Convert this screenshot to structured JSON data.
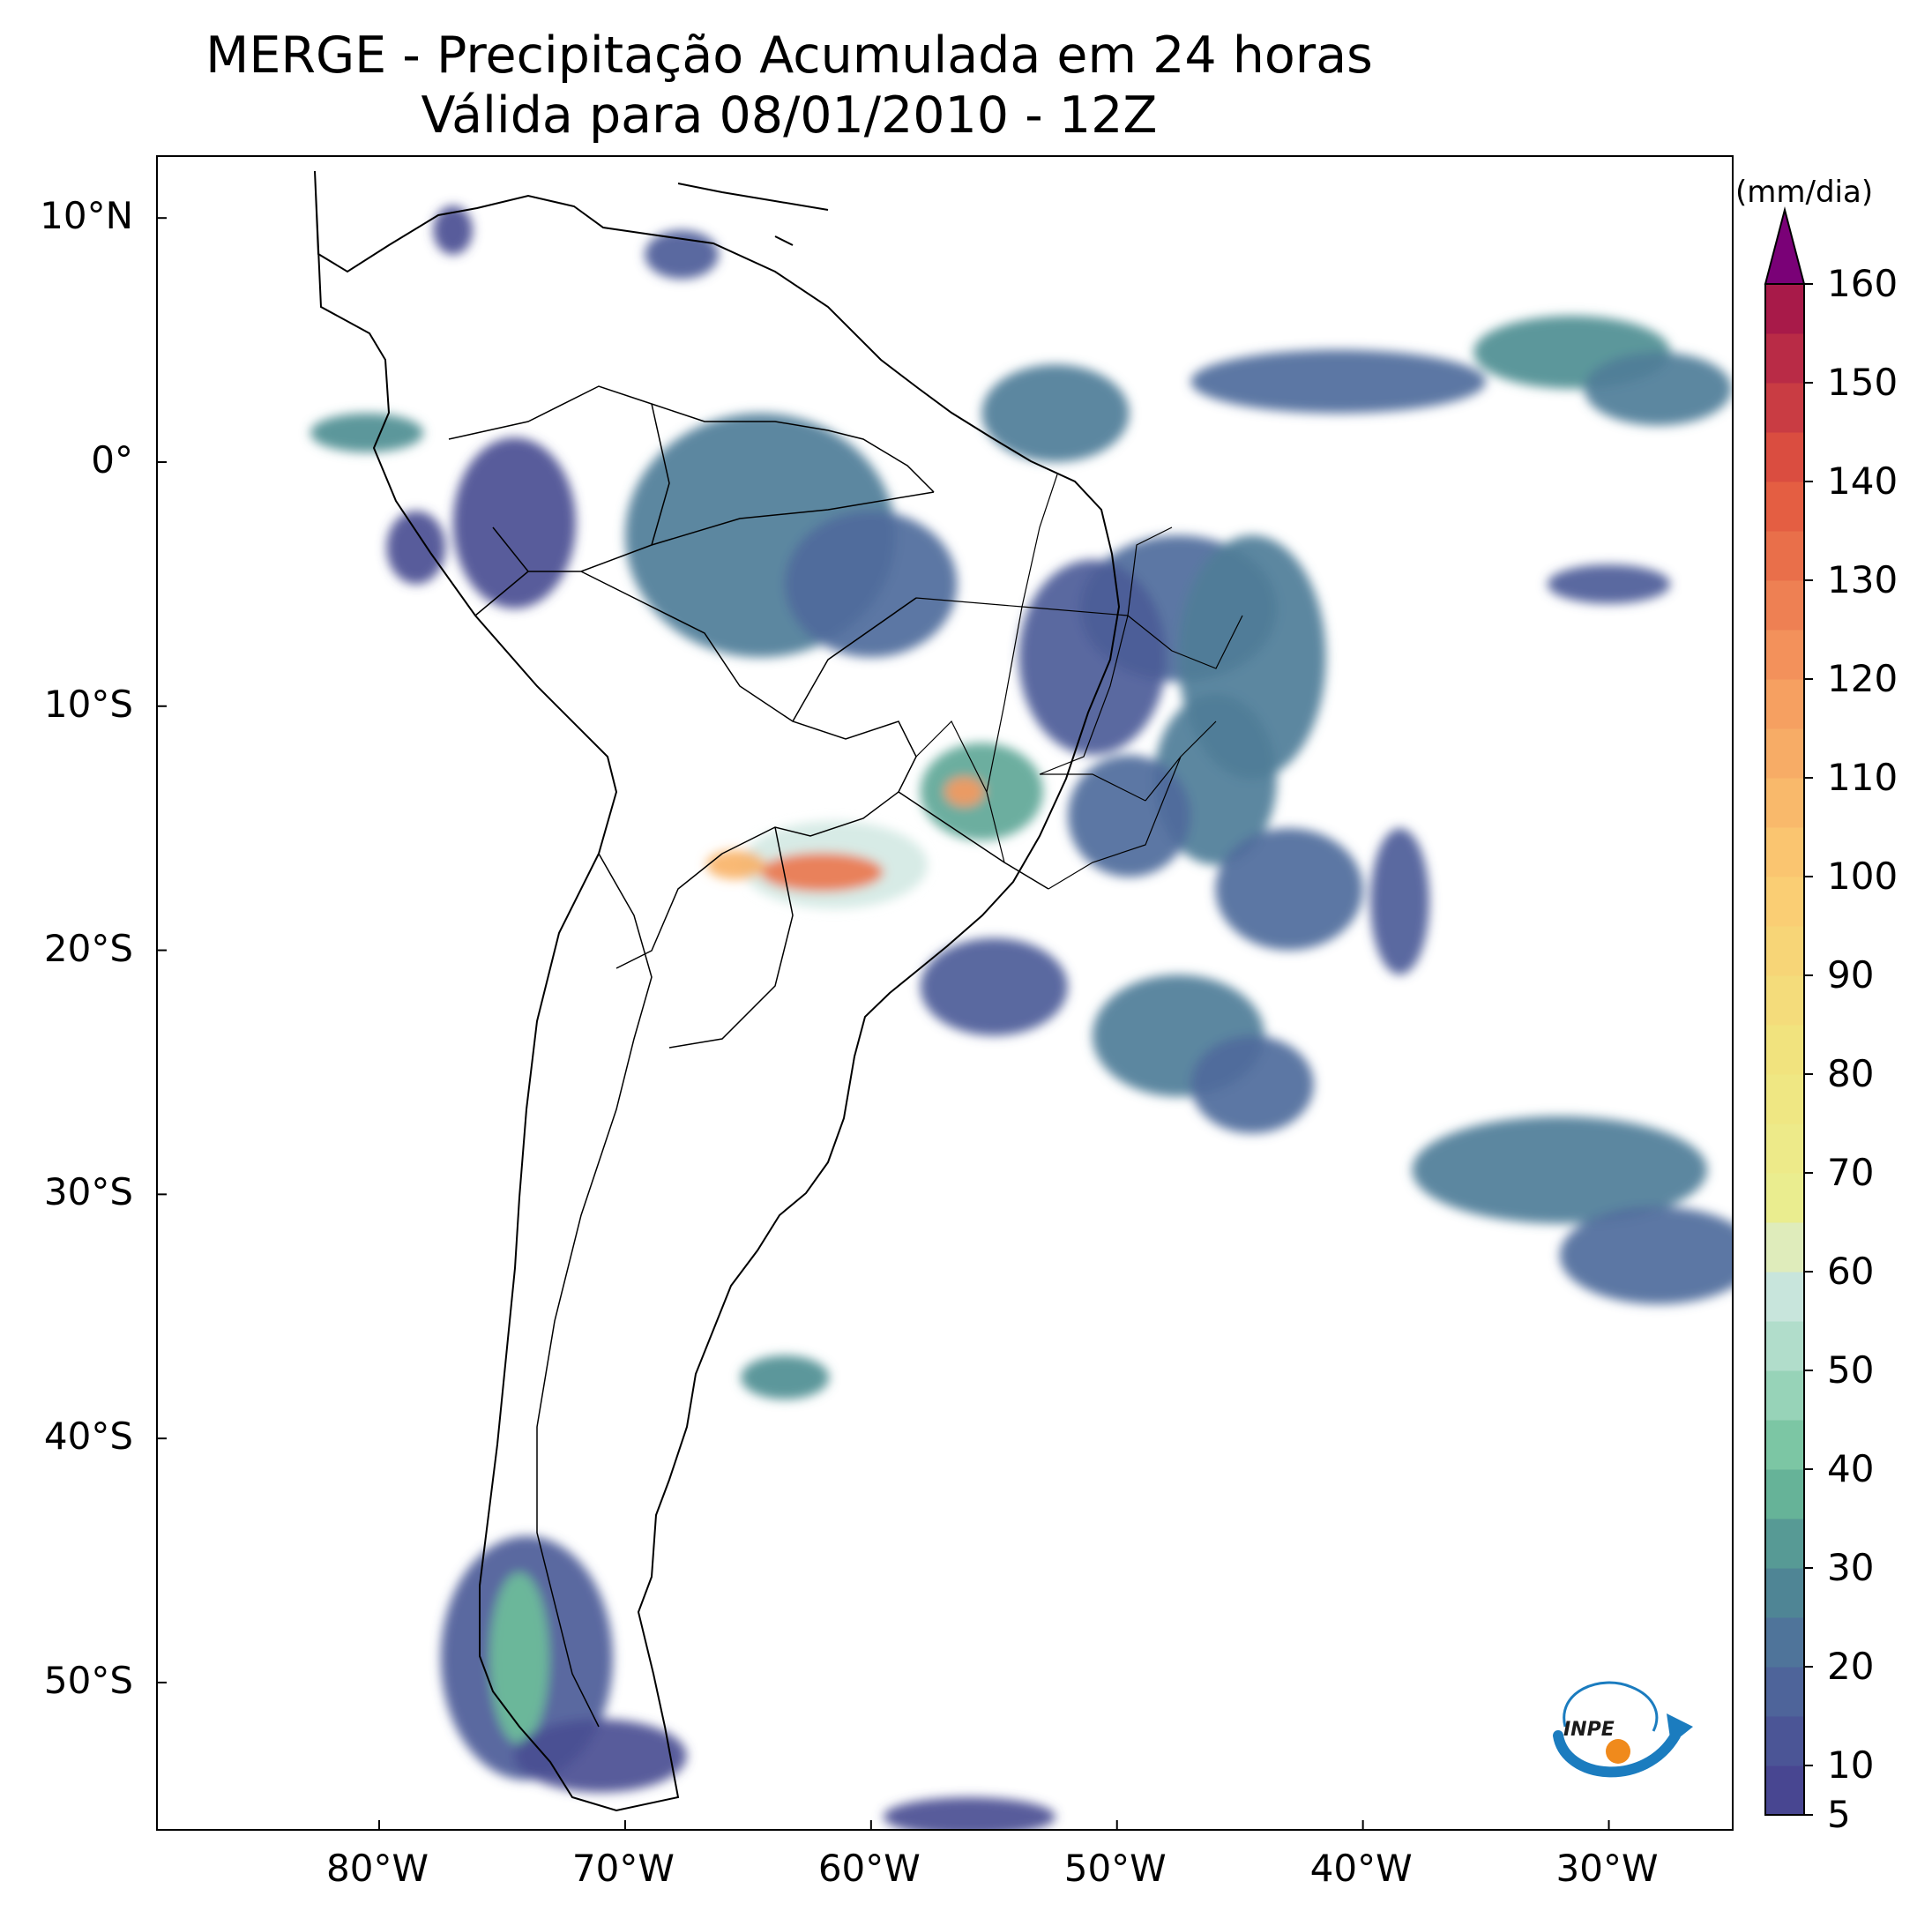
{
  "title": {
    "line1": "MERGE - Precipitação Acumulada em 24 horas",
    "line2": "Válida para 08/01/2010 - 12Z"
  },
  "map": {
    "projection": "PlateCarree",
    "lon_range": [
      -89,
      -25
    ],
    "lat_range": [
      -56,
      12.5
    ],
    "lat_ticks": [
      {
        "value": 10,
        "label": "10°N"
      },
      {
        "value": 0,
        "label": "0°"
      },
      {
        "value": -10,
        "label": "10°S"
      },
      {
        "value": -20,
        "label": "20°S"
      },
      {
        "value": -30,
        "label": "30°S"
      },
      {
        "value": -40,
        "label": "40°S"
      },
      {
        "value": -50,
        "label": "50°S"
      }
    ],
    "lon_ticks": [
      {
        "value": -80,
        "label": "80°W"
      },
      {
        "value": -70,
        "label": "70°W"
      },
      {
        "value": -60,
        "label": "60°W"
      },
      {
        "value": -50,
        "label": "50°W"
      },
      {
        "value": -40,
        "label": "40°W"
      },
      {
        "value": -30,
        "label": "30°W"
      }
    ],
    "precip_cells": [
      {
        "lon": -80.5,
        "lat": 1.2,
        "rlon": 2.3,
        "rlat": 0.8,
        "level": 30
      },
      {
        "lon": -77,
        "lat": 9.5,
        "rlon": 0.8,
        "rlat": 1.0,
        "level": 10
      },
      {
        "lon": -67.7,
        "lat": 8.5,
        "rlon": 1.5,
        "rlat": 1.0,
        "level": 15
      },
      {
        "lon": -64.5,
        "lat": -3,
        "rlon": 5.5,
        "rlat": 5,
        "level": 25
      },
      {
        "lon": -60,
        "lat": -5,
        "rlon": 3.5,
        "rlat": 3,
        "level": 20
      },
      {
        "lon": -74.5,
        "lat": -2.5,
        "rlon": 2.5,
        "rlat": 3.5,
        "level": 10
      },
      {
        "lon": -78.5,
        "lat": -3.5,
        "rlon": 1.2,
        "rlat": 1.5,
        "level": 10
      },
      {
        "lon": -47.5,
        "lat": -6,
        "rlon": 4,
        "rlat": 3,
        "level": 20
      },
      {
        "lon": -44.5,
        "lat": -8,
        "rlon": 3,
        "rlat": 5,
        "level": 25
      },
      {
        "lon": -51,
        "lat": -8,
        "rlon": 3,
        "rlat": 4,
        "level": 15
      },
      {
        "lon": -46,
        "lat": -13,
        "rlon": 2.5,
        "rlat": 3.5,
        "level": 25
      },
      {
        "lon": -49.5,
        "lat": -14.5,
        "rlon": 2.5,
        "rlat": 2.5,
        "level": 20
      },
      {
        "lon": -55.5,
        "lat": -13.5,
        "rlon": 2.5,
        "rlat": 2,
        "level": 35
      },
      {
        "lon": -56.2,
        "lat": -13.5,
        "rlon": 0.8,
        "rlat": 0.6,
        "level": 120
      },
      {
        "lon": -61.5,
        "lat": -16.5,
        "rlon": 3.8,
        "rlat": 1.8,
        "level": 60
      },
      {
        "lon": -62,
        "lat": -16.8,
        "rlon": 2.5,
        "rlat": 0.8,
        "level": 130
      },
      {
        "lon": -65.5,
        "lat": -16.5,
        "rlon": 1.2,
        "rlat": 0.6,
        "level": 110
      },
      {
        "lon": -43,
        "lat": -17.5,
        "rlon": 3,
        "rlat": 2.5,
        "level": 20
      },
      {
        "lon": -38.5,
        "lat": -18,
        "rlon": 1.2,
        "rlat": 3,
        "level": 15
      },
      {
        "lon": -52.5,
        "lat": 2,
        "rlon": 3,
        "rlat": 2,
        "level": 25
      },
      {
        "lon": -41,
        "lat": 3.3,
        "rlon": 6,
        "rlat": 1.3,
        "level": 20
      },
      {
        "lon": -31.5,
        "lat": 4.5,
        "rlon": 4,
        "rlat": 1.5,
        "level": 30
      },
      {
        "lon": -28,
        "lat": 3,
        "rlon": 3,
        "rlat": 1.5,
        "level": 25
      },
      {
        "lon": -30,
        "lat": -5,
        "rlon": 2.5,
        "rlat": 0.8,
        "level": 15
      },
      {
        "lon": -55,
        "lat": -21.5,
        "rlon": 3,
        "rlat": 2,
        "level": 15
      },
      {
        "lon": -47.5,
        "lat": -23.5,
        "rlon": 3.5,
        "rlat": 2.5,
        "level": 25
      },
      {
        "lon": -44.5,
        "lat": -25.5,
        "rlon": 2.5,
        "rlat": 2,
        "level": 20
      },
      {
        "lon": -32,
        "lat": -29,
        "rlon": 6,
        "rlat": 2.2,
        "level": 25
      },
      {
        "lon": -28,
        "lat": -32.5,
        "rlon": 4,
        "rlat": 2,
        "level": 20
      },
      {
        "lon": -63.5,
        "lat": -37.5,
        "rlon": 1.8,
        "rlat": 0.9,
        "level": 30
      },
      {
        "lon": -74,
        "lat": -49,
        "rlon": 3.5,
        "rlat": 5,
        "level": 15
      },
      {
        "lon": -74.3,
        "lat": -49,
        "rlon": 1.2,
        "rlat": 3.5,
        "level": 40
      },
      {
        "lon": -71,
        "lat": -53,
        "rlon": 3.5,
        "rlat": 1.5,
        "level": 10
      },
      {
        "lon": -56,
        "lat": -55.5,
        "rlon": 3.5,
        "rlat": 0.8,
        "level": 10
      }
    ]
  },
  "colorbar": {
    "unit": "(mm/dia)",
    "min": 5,
    "max": 160,
    "extend": "max",
    "over_color": "#7a0177",
    "ticks": [
      5,
      10,
      20,
      30,
      40,
      50,
      60,
      70,
      80,
      90,
      100,
      110,
      120,
      130,
      140,
      150,
      160
    ],
    "tick_labels": [
      "5",
      "10",
      "20",
      "30",
      "40",
      "50",
      "60",
      "70",
      "80",
      "90",
      "100",
      "110",
      "120",
      "130",
      "140",
      "150",
      "160"
    ],
    "stops": [
      {
        "value": 5,
        "color": "#463f8f"
      },
      {
        "value": 20,
        "color": "#4f6b9c"
      },
      {
        "value": 30,
        "color": "#4f8e93"
      },
      {
        "value": 40,
        "color": "#6ebf9a"
      },
      {
        "value": 50,
        "color": "#a5d9c2"
      },
      {
        "value": 60,
        "color": "#d4e9e4"
      },
      {
        "value": 65,
        "color": "#e9ee92"
      },
      {
        "value": 80,
        "color": "#f0e680"
      },
      {
        "value": 100,
        "color": "#fbcb72"
      },
      {
        "value": 120,
        "color": "#f59a5f"
      },
      {
        "value": 140,
        "color": "#e2553e"
      },
      {
        "value": 160,
        "color": "#a0124a"
      }
    ]
  },
  "logo": {
    "text": "INPE",
    "icon": "inpe-logo-icon",
    "colors": {
      "arrow": "#1b7cbf",
      "dot": "#f08a1c"
    }
  }
}
